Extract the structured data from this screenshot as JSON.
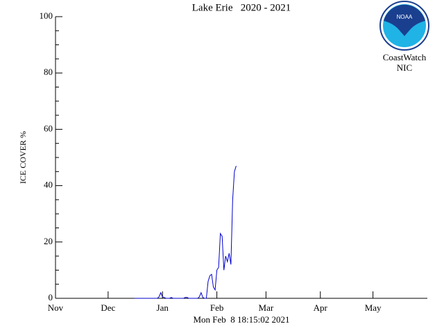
{
  "chart_data": {
    "type": "line",
    "title": "Lake Erie   2020 - 2021",
    "ylabel": "ICE COVER %",
    "footer": "Mon Feb  8 18:15:02 2021",
    "xlim": [
      0,
      212
    ],
    "xticks": [
      {
        "value": 0,
        "label": "Nov"
      },
      {
        "value": 30,
        "label": "Dec"
      },
      {
        "value": 61,
        "label": "Jan"
      },
      {
        "value": 92,
        "label": "Feb"
      },
      {
        "value": 120,
        "label": "Mar"
      },
      {
        "value": 151,
        "label": "Apr"
      },
      {
        "value": 181,
        "label": "May"
      }
    ],
    "ylim": [
      0,
      100
    ],
    "yticks": [
      0,
      20,
      40,
      60,
      80,
      100
    ],
    "yminorticks": [
      5,
      10,
      15,
      25,
      30,
      35,
      45,
      50,
      55,
      65,
      70,
      75,
      85,
      90,
      95
    ],
    "color": "#0000cc",
    "x": [
      45,
      46,
      47,
      48,
      49,
      50,
      51,
      52,
      53,
      54,
      55,
      56,
      57,
      58,
      59,
      60,
      61,
      62,
      63,
      64,
      65,
      66,
      67,
      68,
      69,
      70,
      71,
      72,
      73,
      74,
      75,
      76,
      77,
      78,
      79,
      80,
      81,
      82,
      83,
      84,
      85,
      86,
      87,
      88,
      89,
      90,
      91,
      92,
      93,
      94,
      95,
      96,
      97,
      98,
      99,
      100,
      101,
      102,
      103
    ],
    "values": [
      0,
      0,
      0,
      0,
      0,
      0,
      0,
      0,
      0,
      0,
      0,
      0,
      0,
      0,
      0.5,
      2,
      0.5,
      0.3,
      0,
      0,
      0,
      0.3,
      0,
      0,
      0,
      0,
      0,
      0,
      0,
      0.3,
      0.3,
      0,
      0,
      0,
      0,
      0,
      0,
      0.5,
      2,
      0.3,
      0,
      0,
      6,
      8,
      8.5,
      4,
      3,
      10,
      11,
      23,
      22,
      10,
      15,
      13,
      16,
      12,
      35,
      45,
      47
    ]
  },
  "logo": {
    "badge": "NOAA",
    "org": "CoastWatch",
    "unit": "NIC"
  }
}
